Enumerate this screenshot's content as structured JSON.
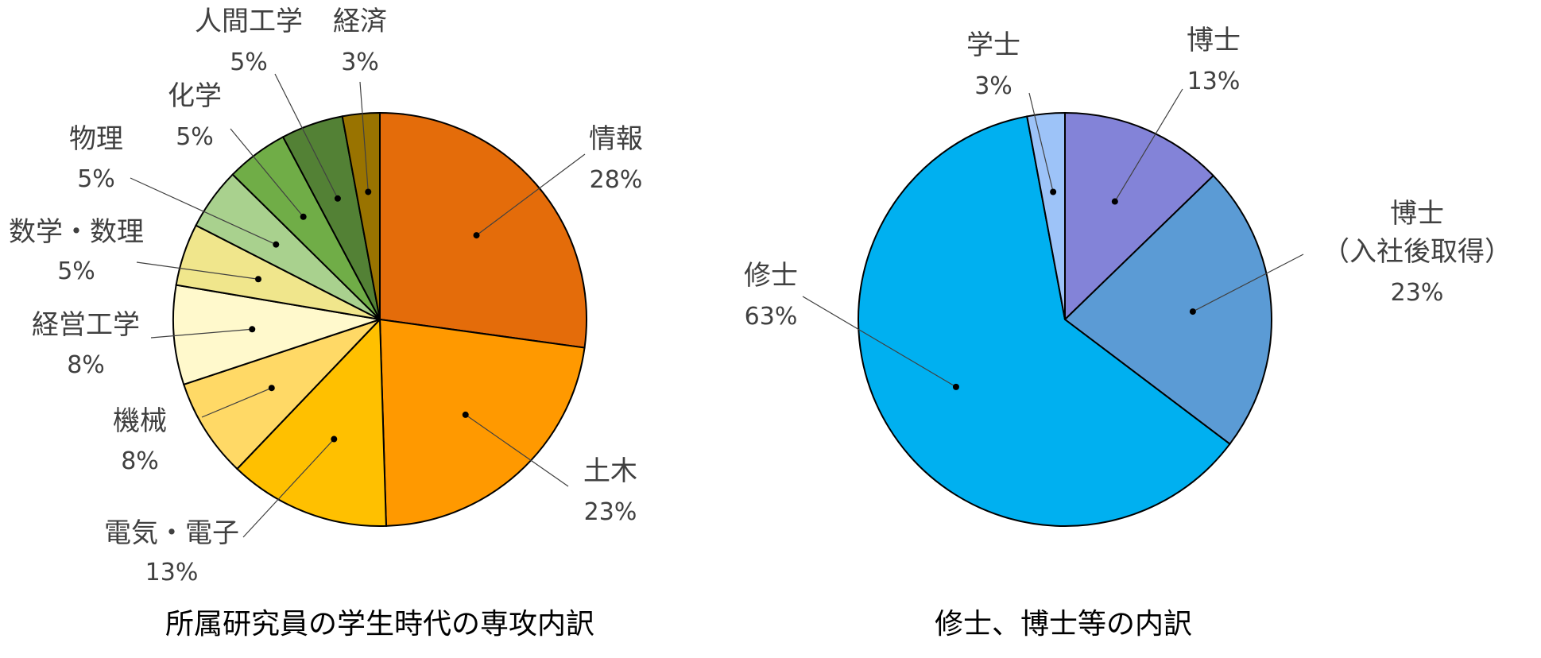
{
  "chart_data": [
    {
      "type": "pie",
      "title": "所属研究員の学生時代の専攻内訳",
      "slices": [
        {
          "label": "情報",
          "value": 28,
          "value_label": "28%",
          "color": "#E46C0A"
        },
        {
          "label": "土木",
          "value": 23,
          "value_label": "23%",
          "color": "#FF9900"
        },
        {
          "label": "電気・電子",
          "value": 13,
          "value_label": "13%",
          "color": "#FFC000"
        },
        {
          "label": "機械",
          "value": 8,
          "value_label": "8%",
          "color": "#FFD966"
        },
        {
          "label": "経営工学",
          "value": 8,
          "value_label": "8%",
          "color": "#FFF9CC"
        },
        {
          "label": "数学・数理",
          "value": 5,
          "value_label": "5%",
          "color": "#F0E68C"
        },
        {
          "label": "物理",
          "value": 5,
          "value_label": "5%",
          "color": "#A9D18E"
        },
        {
          "label": "化学",
          "value": 5,
          "value_label": "5%",
          "color": "#70AD47"
        },
        {
          "label": "人間工学",
          "value": 5,
          "value_label": "5%",
          "color": "#538135"
        },
        {
          "label": "経済",
          "value": 3,
          "value_label": "3%",
          "color": "#997300"
        }
      ]
    },
    {
      "type": "pie",
      "title": "修士、博士等の内訳",
      "slices": [
        {
          "label": "博士",
          "value": 13,
          "value_label": "13%",
          "color": "#8383D8"
        },
        {
          "label": "博士\n（入社後取得）",
          "value": 23,
          "value_label": "23%",
          "color": "#5B9BD5"
        },
        {
          "label": "修士",
          "value": 63,
          "value_label": "63%",
          "color": "#00B0F0"
        },
        {
          "label": "学士",
          "value": 3,
          "value_label": "3%",
          "color": "#9DC3F8"
        }
      ]
    }
  ]
}
